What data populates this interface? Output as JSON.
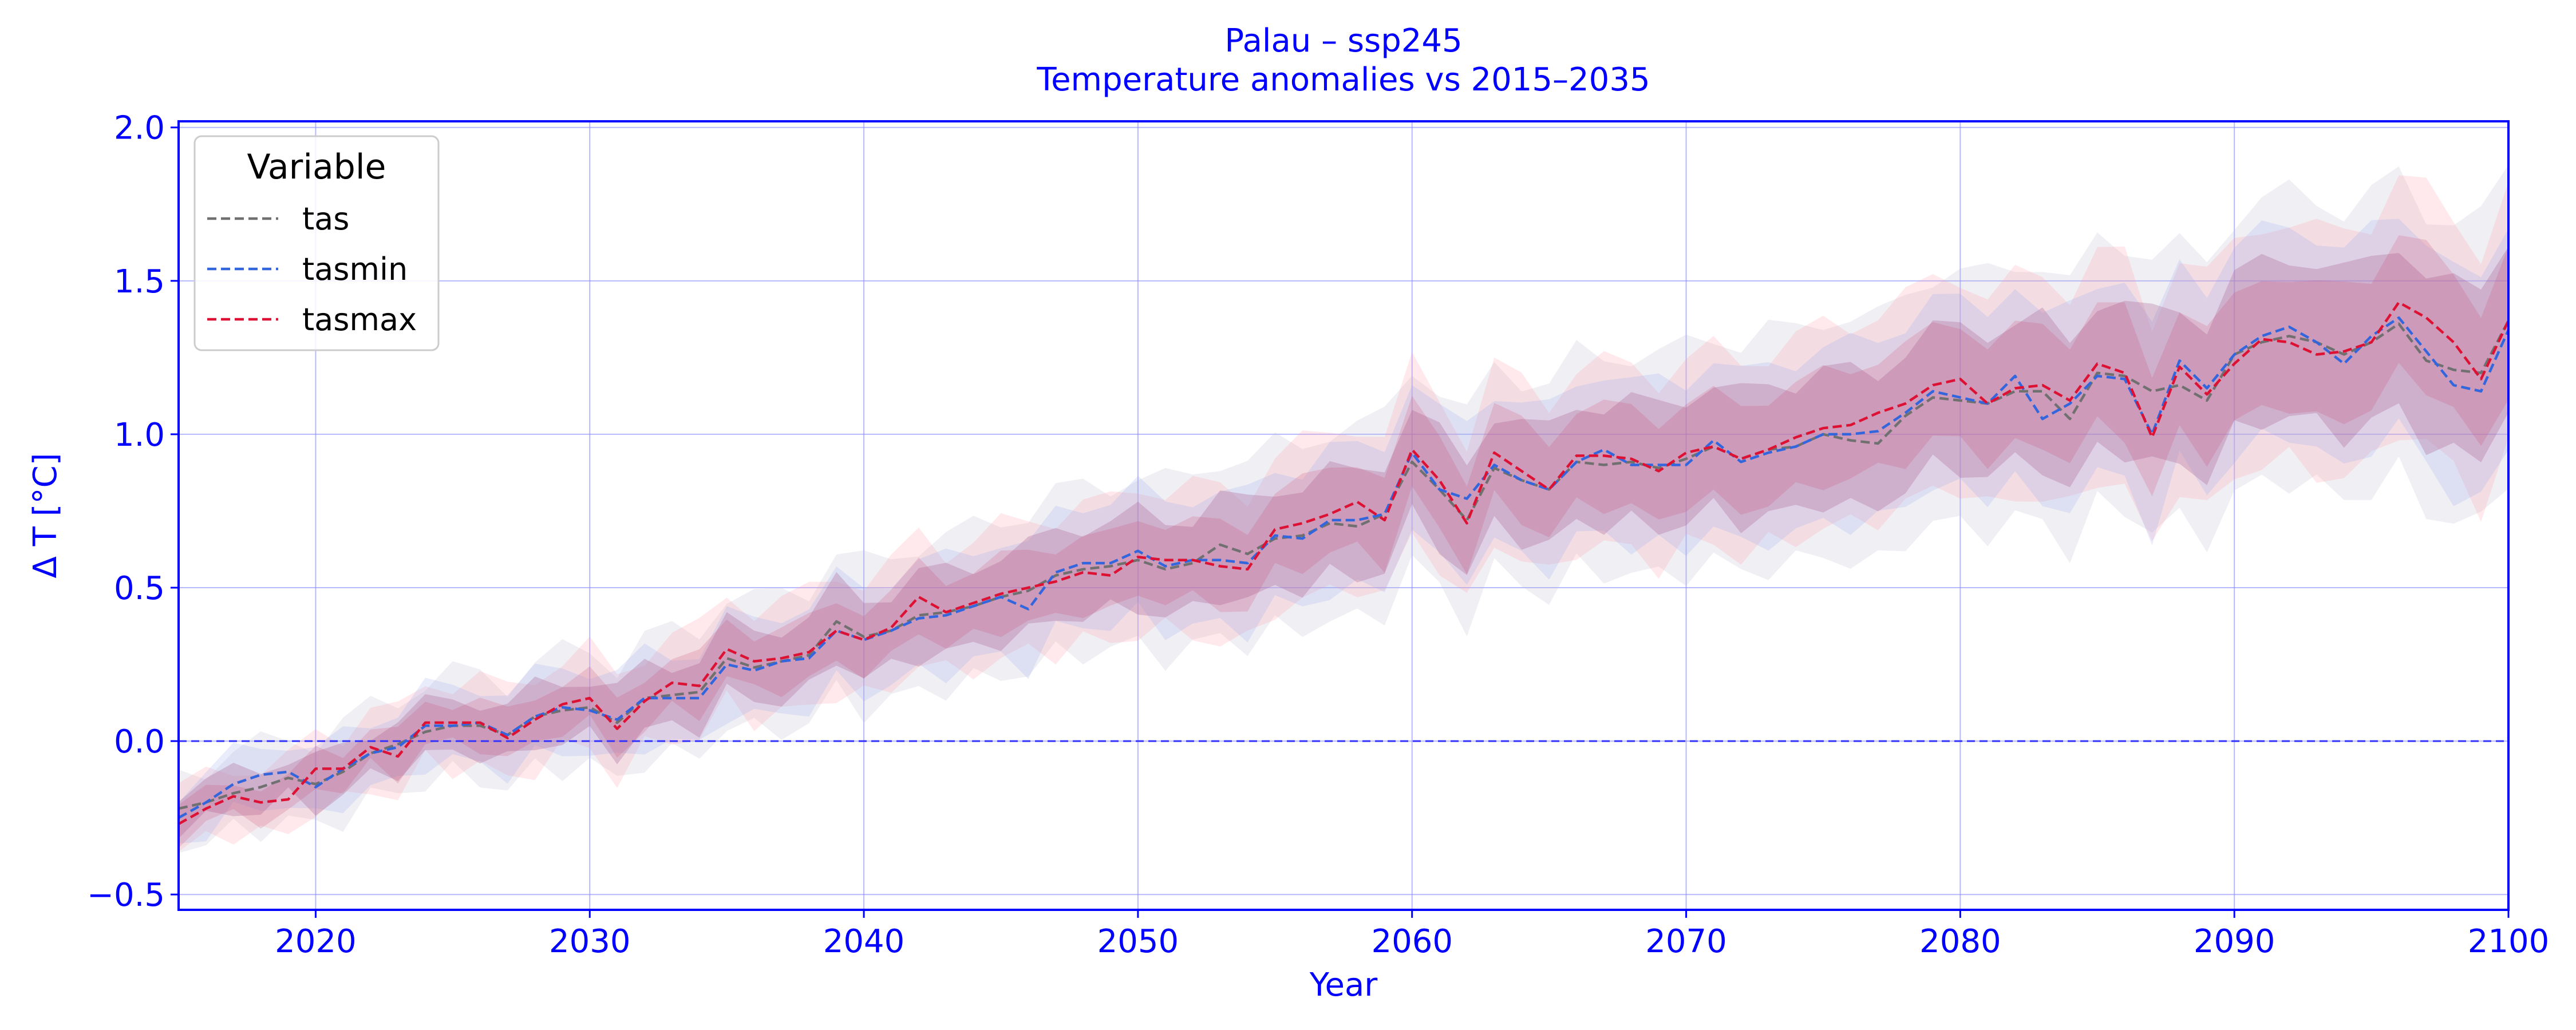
{
  "chart_data": {
    "type": "line",
    "title": "Palau – ssp245",
    "subtitle": "Temperature anomalies vs 2015–2035",
    "xlabel": "Year",
    "ylabel": "Δ T [°C]",
    "xlim": [
      2015,
      2100
    ],
    "ylim": [
      -0.55,
      2.02
    ],
    "x_ticks": [
      2020,
      2030,
      2040,
      2050,
      2060,
      2070,
      2080,
      2090,
      2100
    ],
    "y_ticks": [
      -0.5,
      0.0,
      0.5,
      1.0,
      1.5,
      2.0
    ],
    "grid": true,
    "reference_line": 0.0,
    "legend": {
      "title": "Variable",
      "placement": "top-left"
    },
    "x": [
      2015,
      2016,
      2017,
      2018,
      2019,
      2020,
      2021,
      2022,
      2023,
      2024,
      2025,
      2026,
      2027,
      2028,
      2029,
      2030,
      2031,
      2032,
      2033,
      2034,
      2035,
      2036,
      2037,
      2038,
      2039,
      2040,
      2041,
      2042,
      2043,
      2044,
      2045,
      2046,
      2047,
      2048,
      2049,
      2050,
      2051,
      2052,
      2053,
      2054,
      2055,
      2056,
      2057,
      2058,
      2059,
      2060,
      2061,
      2062,
      2063,
      2064,
      2065,
      2066,
      2067,
      2068,
      2069,
      2070,
      2071,
      2072,
      2073,
      2074,
      2075,
      2076,
      2077,
      2078,
      2079,
      2080,
      2081,
      2082,
      2083,
      2084,
      2085,
      2086,
      2087,
      2088,
      2089,
      2090,
      2091,
      2092,
      2093,
      2094,
      2095,
      2096,
      2097,
      2098,
      2099,
      2100
    ],
    "series": [
      {
        "name": "tas",
        "color": "#707070",
        "values": [
          -0.22,
          -0.2,
          -0.17,
          -0.15,
          -0.12,
          -0.14,
          -0.1,
          -0.04,
          -0.01,
          0.03,
          0.05,
          0.05,
          0.02,
          0.08,
          0.1,
          0.11,
          0.06,
          0.14,
          0.15,
          0.16,
          0.27,
          0.24,
          0.26,
          0.28,
          0.39,
          0.34,
          0.36,
          0.41,
          0.42,
          0.44,
          0.47,
          0.49,
          0.54,
          0.56,
          0.57,
          0.59,
          0.56,
          0.58,
          0.64,
          0.61,
          0.66,
          0.67,
          0.71,
          0.7,
          0.74,
          0.91,
          0.82,
          0.72,
          0.89,
          0.85,
          0.82,
          0.91,
          0.9,
          0.91,
          0.89,
          0.92,
          0.96,
          0.92,
          0.95,
          0.96,
          1.0,
          0.98,
          0.97,
          1.06,
          1.12,
          1.11,
          1.1,
          1.14,
          1.14,
          1.05,
          1.2,
          1.19,
          1.14,
          1.16,
          1.11,
          1.26,
          1.3,
          1.32,
          1.3,
          1.26,
          1.3,
          1.36,
          1.24,
          1.21,
          1.2,
          1.37
        ]
      },
      {
        "name": "tasmin",
        "color": "#3366dd",
        "values": [
          -0.25,
          -0.2,
          -0.14,
          -0.11,
          -0.1,
          -0.15,
          -0.09,
          -0.04,
          -0.02,
          0.05,
          0.05,
          0.06,
          0.02,
          0.08,
          0.11,
          0.1,
          0.07,
          0.14,
          0.14,
          0.14,
          0.25,
          0.23,
          0.26,
          0.27,
          0.36,
          0.33,
          0.36,
          0.4,
          0.41,
          0.44,
          0.47,
          0.43,
          0.55,
          0.58,
          0.58,
          0.62,
          0.57,
          0.59,
          0.59,
          0.58,
          0.67,
          0.66,
          0.72,
          0.72,
          0.74,
          0.94,
          0.82,
          0.79,
          0.9,
          0.85,
          0.82,
          0.91,
          0.95,
          0.9,
          0.9,
          0.9,
          0.98,
          0.91,
          0.94,
          0.96,
          1.0,
          1.0,
          1.01,
          1.07,
          1.14,
          1.12,
          1.1,
          1.19,
          1.05,
          1.1,
          1.19,
          1.18,
          1.0,
          1.24,
          1.15,
          1.26,
          1.32,
          1.35,
          1.3,
          1.23,
          1.32,
          1.38,
          1.27,
          1.16,
          1.14,
          1.34
        ]
      },
      {
        "name": "tasmax",
        "color": "#dd1133",
        "values": [
          -0.27,
          -0.22,
          -0.18,
          -0.2,
          -0.19,
          -0.09,
          -0.09,
          -0.02,
          -0.05,
          0.06,
          0.06,
          0.06,
          0.01,
          0.07,
          0.12,
          0.14,
          0.04,
          0.13,
          0.19,
          0.18,
          0.3,
          0.26,
          0.27,
          0.29,
          0.36,
          0.33,
          0.37,
          0.47,
          0.42,
          0.45,
          0.48,
          0.5,
          0.52,
          0.55,
          0.54,
          0.6,
          0.59,
          0.59,
          0.57,
          0.56,
          0.69,
          0.71,
          0.74,
          0.78,
          0.72,
          0.95,
          0.85,
          0.71,
          0.94,
          0.88,
          0.82,
          0.93,
          0.93,
          0.92,
          0.88,
          0.94,
          0.96,
          0.92,
          0.95,
          0.99,
          1.02,
          1.03,
          1.07,
          1.1,
          1.16,
          1.18,
          1.1,
          1.15,
          1.16,
          1.11,
          1.23,
          1.2,
          0.99,
          1.22,
          1.13,
          1.23,
          1.31,
          1.3,
          1.26,
          1.27,
          1.3,
          1.43,
          1.38,
          1.3,
          1.18,
          1.37
        ]
      }
    ]
  }
}
